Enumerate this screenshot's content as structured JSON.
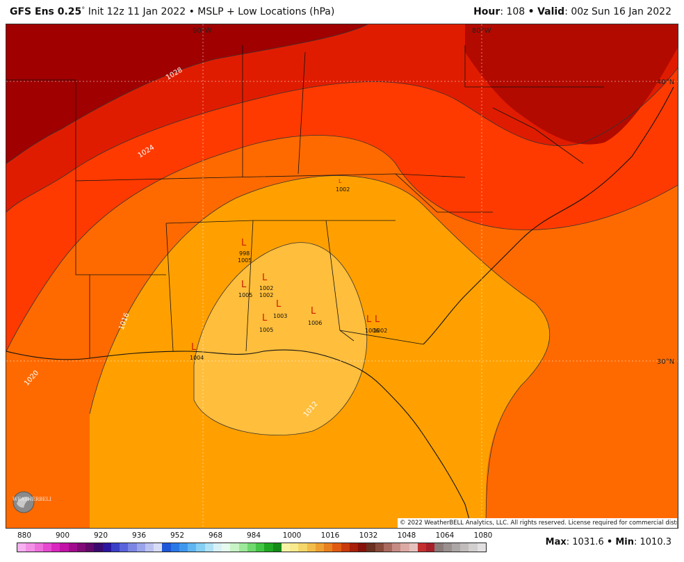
{
  "header": {
    "model": "GFS Ens 0.25",
    "degree": "°",
    "init": " Init 12z 11 Jan 2022",
    "product": "MSLP + Low Locations (hPa)",
    "hour_label": "Hour",
    "hour_value": ": 108",
    "valid_label": "Valid",
    "valid_value": ": 00z Sun 16 Jan 2022",
    "bullet": "•"
  },
  "map": {
    "lon_labels": [
      "90°W",
      "80°W"
    ],
    "lat_labels": [
      "40°N",
      "30°N"
    ],
    "isobar_labels": [
      "1028",
      "1024",
      "1020",
      "1016",
      "1012"
    ],
    "lows": [
      {
        "symbol": "L",
        "pressure": "998"
      },
      {
        "symbol": "L",
        "pressure": "1005"
      },
      {
        "symbol": "L",
        "pressure": "1002"
      },
      {
        "symbol": "L",
        "pressure": "1002"
      },
      {
        "symbol": "L",
        "pressure": "1005"
      },
      {
        "symbol": "L",
        "pressure": "1003"
      },
      {
        "symbol": "L",
        "pressure": "1006"
      },
      {
        "symbol": "L",
        "pressure": "1005"
      },
      {
        "symbol": "L",
        "pressure": "1004"
      },
      {
        "symbol": "L",
        "pressure": "1002"
      },
      {
        "symbol": "L",
        "pressure": "1002"
      },
      {
        "symbol": "L",
        "pressure": "1006"
      }
    ],
    "copyright": "© 2022 WeatherBELL Analytics, LLC. All rights reserved. License required for commercial distribution.",
    "logo_text": "WEATHERBELL"
  },
  "colorbar": {
    "ticks": [
      "880",
      "900",
      "920",
      "936",
      "952",
      "968",
      "984",
      "1000",
      "1016",
      "1032",
      "1048",
      "1064",
      "1080"
    ],
    "colors": [
      "#f7b0f0",
      "#f390e6",
      "#ee6fdc",
      "#e64ad0",
      "#d927bf",
      "#c212a8",
      "#a10c8e",
      "#800b76",
      "#62096a",
      "#3b0a6e",
      "#2a16a0",
      "#3a3fc8",
      "#5a64dc",
      "#7b86e4",
      "#9aa4ea",
      "#bcc2f0",
      "#d8dcf6",
      "#1e56d8",
      "#2a78e6",
      "#3f98ee",
      "#5fb6f2",
      "#85cef4",
      "#b0e2f6",
      "#d7f1f7",
      "#e6fbf0",
      "#c8f3c5",
      "#9de89a",
      "#6fd86e",
      "#44c445",
      "#20a722",
      "#138a18",
      "#f8f4a6",
      "#f6e98e",
      "#f4d66a",
      "#f2bd4a",
      "#eea031",
      "#e8801f",
      "#e05a12",
      "#c93a0c",
      "#a81f0a",
      "#86120a",
      "#6a3020",
      "#8a4a3a",
      "#aa6a5e",
      "#c68c84",
      "#dcaaa4",
      "#e6c2be",
      "#c43030",
      "#a8202a",
      "#8a7a7a",
      "#9a9090",
      "#aca6a6",
      "#c0bcbc",
      "#d2cfcf",
      "#e2e0e0"
    ]
  },
  "stats": {
    "max_label": "Max",
    "max_value": ": 1031.6 ",
    "min_label": "Min",
    "min_value": ": 1010.3",
    "bullet": "•"
  }
}
